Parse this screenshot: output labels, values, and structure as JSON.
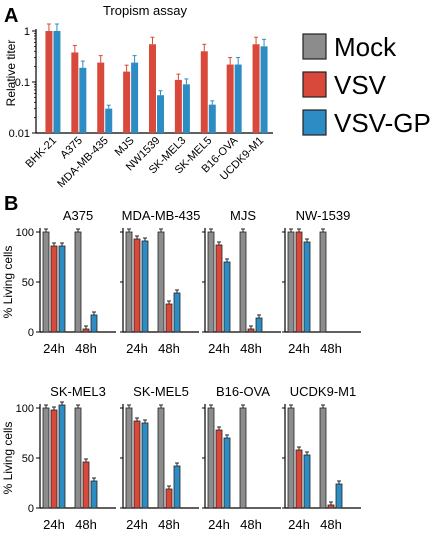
{
  "colors": {
    "Mock": "#8c8c8c",
    "VSV": "#d9493b",
    "VSV-GP": "#2e8cc4"
  },
  "legend": [
    {
      "name": "Mock",
      "color": "#8c8c8c"
    },
    {
      "name": "VSV",
      "color": "#d9493b"
    },
    {
      "name": "VSV-GP",
      "color": "#2e8cc4"
    }
  ],
  "panel_a": {
    "letter": "A",
    "title": "Tropism assay",
    "ylabel": "Relative titer"
  },
  "panel_b": {
    "letter": "B"
  },
  "chart_data": [
    {
      "type": "bar",
      "title": "Tropism assay",
      "ylabel": "Relative titer",
      "yscale": "log",
      "ylim": [
        0.01,
        1
      ],
      "yticks": [
        "0.01",
        "0.1",
        "1"
      ],
      "categories": [
        "BHK-21",
        "A375",
        "MDA-MB-435",
        "MJS",
        "NW1539",
        "SK-MEL3",
        "SK-MEL5",
        "B16-OVA",
        "UCDK9-M1"
      ],
      "series": [
        {
          "name": "VSV",
          "values": [
            1.0,
            0.38,
            0.24,
            0.16,
            0.55,
            0.11,
            0.4,
            0.22,
            0.55
          ]
        },
        {
          "name": "VSV-GP",
          "values": [
            1.0,
            0.19,
            0.03,
            0.24,
            0.055,
            0.09,
            0.036,
            0.22,
            0.5
          ]
        }
      ]
    },
    {
      "type": "bar",
      "title": "A375",
      "ylabel": "% Living cells",
      "ylim": [
        0,
        100
      ],
      "yticks": [
        "0",
        "50",
        "100"
      ],
      "categories": [
        "24h",
        "48h"
      ],
      "series": [
        {
          "name": "Mock",
          "values": [
            100,
            100
          ]
        },
        {
          "name": "VSV",
          "values": [
            86,
            3
          ]
        },
        {
          "name": "VSV-GP",
          "values": [
            86,
            17
          ]
        }
      ]
    },
    {
      "type": "bar",
      "title": "MDA-MB-435",
      "ylim": [
        0,
        100
      ],
      "categories": [
        "24h",
        "48h"
      ],
      "series": [
        {
          "name": "Mock",
          "values": [
            100,
            100
          ]
        },
        {
          "name": "VSV",
          "values": [
            93,
            28
          ]
        },
        {
          "name": "VSV-GP",
          "values": [
            91,
            39
          ]
        }
      ]
    },
    {
      "type": "bar",
      "title": "MJS",
      "ylim": [
        0,
        100
      ],
      "categories": [
        "24h",
        "48h"
      ],
      "series": [
        {
          "name": "Mock",
          "values": [
            100,
            100
          ]
        },
        {
          "name": "VSV",
          "values": [
            87,
            3
          ]
        },
        {
          "name": "VSV-GP",
          "values": [
            70,
            14
          ]
        }
      ]
    },
    {
      "type": "bar",
      "title": "NW-1539",
      "ylim": [
        0,
        100
      ],
      "categories": [
        "24h",
        "48h"
      ],
      "series": [
        {
          "name": "Mock",
          "values": [
            100,
            100
          ]
        },
        {
          "name": "VSV",
          "values": [
            100,
            0
          ]
        },
        {
          "name": "VSV-GP",
          "values": [
            90,
            0
          ]
        }
      ]
    },
    {
      "type": "bar",
      "title": "SK-MEL3",
      "ylabel": "% Living cells",
      "ylim": [
        0,
        100
      ],
      "yticks": [
        "0",
        "50",
        "100"
      ],
      "categories": [
        "24h",
        "48h"
      ],
      "series": [
        {
          "name": "Mock",
          "values": [
            100,
            100
          ]
        },
        {
          "name": "VSV",
          "values": [
            98,
            46
          ]
        },
        {
          "name": "VSV-GP",
          "values": [
            103,
            27
          ]
        }
      ]
    },
    {
      "type": "bar",
      "title": "SK-MEL5",
      "ylim": [
        0,
        100
      ],
      "categories": [
        "24h",
        "48h"
      ],
      "series": [
        {
          "name": "Mock",
          "values": [
            100,
            100
          ]
        },
        {
          "name": "VSV",
          "values": [
            87,
            19
          ]
        },
        {
          "name": "VSV-GP",
          "values": [
            85,
            42
          ]
        }
      ]
    },
    {
      "type": "bar",
      "title": "B16-OVA",
      "ylim": [
        0,
        100
      ],
      "categories": [
        "24h",
        "48h"
      ],
      "series": [
        {
          "name": "Mock",
          "values": [
            100,
            100
          ]
        },
        {
          "name": "VSV",
          "values": [
            78,
            0
          ]
        },
        {
          "name": "VSV-GP",
          "values": [
            70,
            0
          ]
        }
      ]
    },
    {
      "type": "bar",
      "title": "UCDK9-M1",
      "ylim": [
        0,
        100
      ],
      "categories": [
        "24h",
        "48h"
      ],
      "series": [
        {
          "name": "Mock",
          "values": [
            100,
            100
          ]
        },
        {
          "name": "VSV",
          "values": [
            58,
            3
          ]
        },
        {
          "name": "VSV-GP",
          "values": [
            53,
            24
          ]
        }
      ]
    }
  ]
}
